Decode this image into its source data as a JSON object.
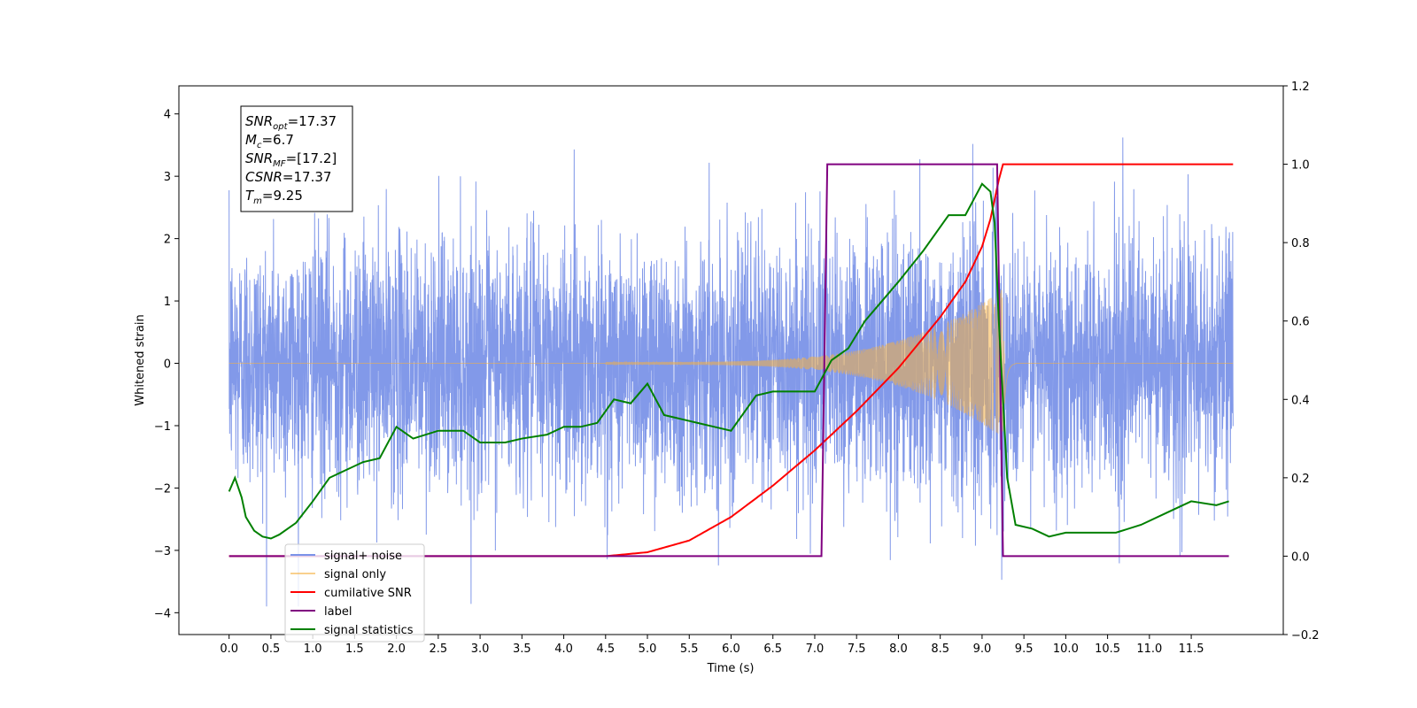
{
  "chart_data": {
    "type": "line",
    "xlabel": "Time (s)",
    "ylabel": "Whitened strain",
    "xlim": [
      -0.6,
      12.6
    ],
    "ylim_left": [
      -4.35,
      4.45
    ],
    "ylim_right": [
      -0.2,
      1.2
    ],
    "x_ticks": [
      "0.0",
      "0.5",
      "1.0",
      "1.5",
      "2.0",
      "2.5",
      "3.0",
      "3.5",
      "4.0",
      "4.5",
      "5.0",
      "5.5",
      "6.0",
      "6.5",
      "7.0",
      "7.5",
      "8.0",
      "8.5",
      "9.0",
      "9.5",
      "10.0",
      "10.5",
      "11.0",
      "11.5"
    ],
    "y_ticks_left": [
      "−4",
      "−3",
      "−2",
      "−1",
      "0",
      "1",
      "2",
      "3",
      "4"
    ],
    "y_ticks_right": [
      "−0.2",
      "0.0",
      "0.2",
      "0.4",
      "0.6",
      "0.8",
      "1.0",
      "1.2"
    ],
    "grid": false,
    "legend_position": "lower-left",
    "annotation": {
      "lines": [
        {
          "main": "SNR",
          "sub": "opt",
          "rest": "=17.37"
        },
        {
          "main": "M",
          "sub": "c",
          "rest": "=6.7"
        },
        {
          "main": "SNR",
          "sub": "MF",
          "rest": "=[17.2]"
        },
        {
          "main": "CSNR",
          "sub": "",
          "rest": "=17.37"
        },
        {
          "main": "T",
          "sub": "m",
          "rest": "=9.25"
        }
      ]
    },
    "series": [
      {
        "name": "signal+ noise",
        "color": "#7b93e8",
        "axis": "left",
        "description_values": {
          "x_range": [
            0.0,
            12.0
          ],
          "noise_sigma": 1.0,
          "peak_max": 4.1,
          "peak_min": -3.9
        }
      },
      {
        "name": "signal only",
        "color": "#f5b041",
        "axis": "left",
        "chirp": {
          "t_start": 4.5,
          "t_merger": 9.25,
          "amp_at_start": 0.02,
          "amp_peak": 1.2,
          "ringdown_end": 9.4
        }
      },
      {
        "name": "cumilative SNR",
        "color": "#ff0000",
        "axis": "right",
        "x": [
          0.0,
          4.5,
          5.0,
          5.5,
          6.0,
          6.5,
          7.0,
          7.5,
          8.0,
          8.5,
          8.8,
          9.0,
          9.1,
          9.2,
          9.25,
          12.0
        ],
        "y": [
          0.0,
          0.0,
          0.01,
          0.04,
          0.1,
          0.18,
          0.27,
          0.37,
          0.48,
          0.61,
          0.7,
          0.79,
          0.86,
          0.96,
          1.0,
          1.0
        ]
      },
      {
        "name": "label",
        "color": "#800080",
        "axis": "right",
        "x": [
          0.0,
          7.08,
          7.15,
          9.18,
          9.25,
          11.95
        ],
        "y": [
          0.0,
          0.0,
          1.0,
          1.0,
          0.0,
          0.0
        ]
      },
      {
        "name": "signal statistics",
        "color": "#008000",
        "axis": "right",
        "x": [
          0.0,
          0.07,
          0.15,
          0.2,
          0.3,
          0.4,
          0.5,
          0.6,
          0.8,
          1.0,
          1.2,
          1.4,
          1.6,
          1.8,
          2.0,
          2.2,
          2.5,
          2.8,
          3.0,
          3.3,
          3.5,
          3.8,
          4.0,
          4.2,
          4.4,
          4.6,
          4.8,
          5.0,
          5.2,
          5.4,
          5.6,
          5.8,
          6.0,
          6.3,
          6.5,
          6.8,
          7.0,
          7.2,
          7.4,
          7.6,
          7.8,
          8.0,
          8.3,
          8.6,
          8.8,
          9.0,
          9.1,
          9.15,
          9.2,
          9.3,
          9.4,
          9.6,
          9.8,
          10.0,
          10.3,
          10.6,
          10.9,
          11.2,
          11.5,
          11.8,
          11.95
        ],
        "y": [
          0.165,
          0.2,
          0.15,
          0.1,
          0.065,
          0.05,
          0.045,
          0.055,
          0.085,
          0.14,
          0.2,
          0.22,
          0.24,
          0.25,
          0.33,
          0.3,
          0.32,
          0.32,
          0.29,
          0.29,
          0.3,
          0.31,
          0.33,
          0.33,
          0.34,
          0.4,
          0.39,
          0.44,
          0.36,
          0.35,
          0.34,
          0.33,
          0.32,
          0.41,
          0.42,
          0.42,
          0.42,
          0.5,
          0.53,
          0.6,
          0.65,
          0.7,
          0.78,
          0.87,
          0.87,
          0.95,
          0.93,
          0.85,
          0.6,
          0.2,
          0.08,
          0.07,
          0.05,
          0.06,
          0.06,
          0.06,
          0.08,
          0.11,
          0.14,
          0.13,
          0.14
        ]
      }
    ]
  },
  "legend": {
    "items": [
      {
        "label": "signal+ noise",
        "color": "#7b93e8"
      },
      {
        "label": "signal only",
        "color": "#f5b041"
      },
      {
        "label": "cumilative SNR",
        "color": "#ff0000"
      },
      {
        "label": "label",
        "color": "#800080"
      },
      {
        "label": "signal statistics",
        "color": "#008000"
      }
    ]
  }
}
